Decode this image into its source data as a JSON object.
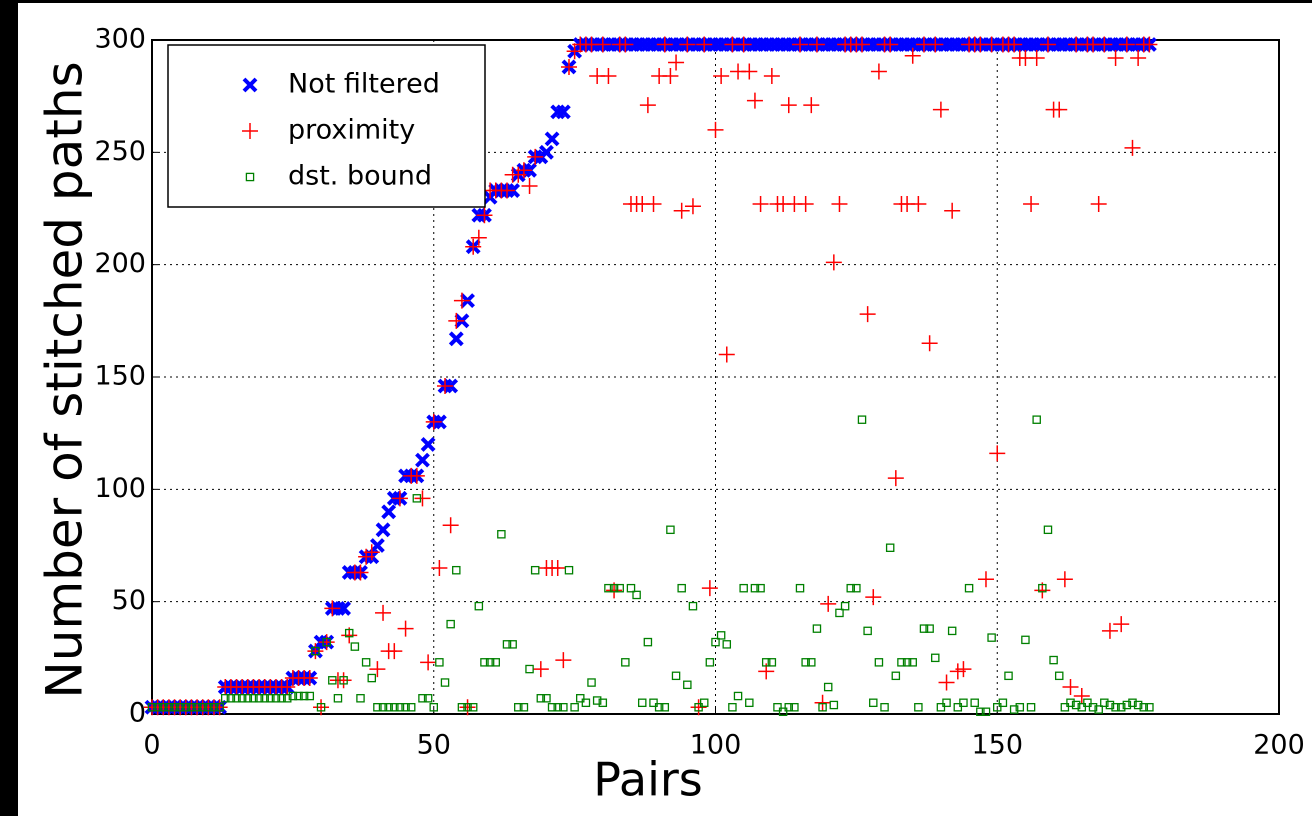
{
  "chart_data": {
    "type": "scatter",
    "x_label": "Pairs",
    "y_label": "Number of stitched paths",
    "xlim": [
      0,
      200
    ],
    "ylim": [
      0,
      300
    ],
    "xticks": [
      0,
      50,
      100,
      150,
      200
    ],
    "yticks": [
      0,
      50,
      100,
      150,
      200,
      250,
      300
    ],
    "grid": true,
    "legend": "upper left",
    "x": [
      0,
      1,
      2,
      3,
      4,
      5,
      6,
      7,
      8,
      9,
      10,
      11,
      12,
      13,
      14,
      15,
      16,
      17,
      18,
      19,
      20,
      21,
      22,
      23,
      24,
      25,
      26,
      27,
      28,
      29,
      30,
      31,
      32,
      33,
      34,
      35,
      36,
      37,
      38,
      39,
      40,
      41,
      42,
      43,
      44,
      45,
      46,
      47,
      48,
      49,
      50,
      51,
      52,
      53,
      54,
      55,
      56,
      57,
      58,
      59,
      60,
      61,
      62,
      63,
      64,
      65,
      66,
      67,
      68,
      69,
      70,
      71,
      72,
      73,
      74,
      75,
      76,
      77,
      78,
      79,
      80,
      81,
      82,
      83,
      84,
      85,
      86,
      87,
      88,
      89,
      90,
      91,
      92,
      93,
      94,
      95,
      96,
      97,
      98,
      99,
      100,
      101,
      102,
      103,
      104,
      105,
      106,
      107,
      108,
      109,
      110,
      111,
      112,
      113,
      114,
      115,
      116,
      117,
      118,
      119,
      120,
      121,
      122,
      123,
      124,
      125,
      126,
      127,
      128,
      129,
      130,
      131,
      132,
      133,
      134,
      135,
      136,
      137,
      138,
      139,
      140,
      141,
      142,
      143,
      144,
      145,
      146,
      147,
      148,
      149,
      150,
      151,
      152,
      153,
      154,
      155,
      156,
      157,
      158,
      159,
      160,
      161,
      162,
      163,
      164,
      165,
      166,
      167,
      168,
      169,
      170,
      171,
      172,
      173,
      174,
      175,
      176,
      177
    ],
    "series": [
      {
        "name": "Not filtered",
        "color": "#0000ff",
        "marker": "x",
        "values": [
          3,
          3,
          3,
          3,
          3,
          3,
          3,
          3,
          3,
          3,
          3,
          3,
          3,
          12,
          12,
          12,
          12,
          12,
          12,
          12,
          12,
          12,
          12,
          12,
          12,
          16,
          16,
          16,
          16,
          28,
          32,
          32,
          47,
          47,
          47,
          63,
          63,
          63,
          70,
          70,
          75,
          82,
          90,
          96,
          96,
          106,
          106,
          106,
          113,
          120,
          130,
          130,
          146,
          146,
          167,
          175,
          184,
          208,
          222,
          222,
          230,
          233,
          233,
          233,
          233,
          240,
          242,
          242,
          248,
          248,
          250,
          256,
          268,
          268,
          288,
          295,
          298,
          298,
          298,
          298,
          298,
          298,
          298,
          298,
          298,
          298,
          298,
          298,
          298,
          298,
          298,
          298,
          298,
          298,
          298,
          298,
          298,
          298,
          298,
          298,
          298,
          298,
          298,
          298,
          298,
          298,
          298,
          298,
          298,
          298,
          298,
          298,
          298,
          298,
          298,
          298,
          298,
          298,
          298,
          298,
          298,
          298,
          298,
          298,
          298,
          298,
          298,
          298,
          298,
          298,
          298,
          298,
          298,
          298,
          298,
          298,
          298,
          298,
          298,
          298,
          298,
          298,
          298,
          298,
          298,
          298,
          298,
          298,
          298,
          298,
          298,
          298,
          298,
          298,
          298,
          298,
          298,
          298,
          298,
          298,
          298,
          298,
          298,
          298,
          298,
          298,
          298,
          298,
          298,
          298,
          298,
          298,
          298,
          298,
          298,
          298,
          298,
          298
        ]
      },
      {
        "name": "proximity",
        "color": "#ff0000",
        "marker": "plus",
        "values": [
          3,
          3,
          3,
          3,
          3,
          3,
          3,
          3,
          3,
          3,
          3,
          3,
          3,
          12,
          12,
          12,
          12,
          12,
          12,
          12,
          12,
          12,
          12,
          12,
          12,
          16,
          16,
          16,
          16,
          28,
          3,
          32,
          47,
          15,
          15,
          35,
          63,
          63,
          70,
          72,
          20,
          45,
          28,
          28,
          96,
          38,
          106,
          106,
          96,
          23,
          130,
          65,
          146,
          84,
          175,
          184,
          3,
          208,
          212,
          222,
          233,
          233,
          233,
          233,
          240,
          240,
          242,
          235,
          248,
          20,
          65,
          65,
          65,
          24,
          288,
          295,
          298,
          298,
          298,
          284,
          298,
          284,
          55,
          298,
          298,
          227,
          227,
          227,
          271,
          227,
          284,
          298,
          284,
          290,
          224,
          298,
          226,
          3,
          298,
          56,
          260,
          284,
          160,
          298,
          286,
          298,
          286,
          273,
          227,
          19,
          284,
          227,
          227,
          271,
          227,
          298,
          227,
          271,
          298,
          5,
          49,
          201,
          227,
          298,
          298,
          298,
          298,
          178,
          52,
          286,
          298,
          298,
          105,
          227,
          227,
          293,
          227,
          298,
          165,
          298,
          269,
          14,
          224,
          19,
          20,
          298,
          298,
          298,
          60,
          298,
          116,
          298,
          298,
          298,
          292,
          292,
          227,
          292,
          55,
          298,
          269,
          269,
          60,
          12,
          298,
          8,
          298,
          298,
          227,
          298,
          37,
          292,
          40,
          298,
          252,
          292,
          298,
          298
        ]
      },
      {
        "name": "dst. bound",
        "color": "#008000",
        "marker": "square",
        "values": [
          3,
          3,
          3,
          3,
          3,
          3,
          3,
          3,
          3,
          3,
          3,
          3,
          3,
          7,
          7,
          7,
          7,
          7,
          7,
          7,
          7,
          7,
          7,
          7,
          7,
          8,
          8,
          8,
          8,
          28,
          3,
          32,
          15,
          7,
          15,
          36,
          30,
          7,
          23,
          16,
          3,
          3,
          3,
          3,
          3,
          3,
          3,
          96,
          7,
          7,
          3,
          23,
          14,
          40,
          64,
          3,
          3,
          3,
          48,
          23,
          23,
          23,
          80,
          31,
          31,
          3,
          3,
          20,
          64,
          7,
          7,
          3,
          3,
          3,
          64,
          3,
          7,
          5,
          14,
          6,
          5,
          56,
          56,
          56,
          23,
          56,
          53,
          5,
          32,
          5,
          3,
          3,
          82,
          17,
          56,
          13,
          48,
          3,
          5,
          23,
          32,
          35,
          31,
          3,
          8,
          56,
          5,
          56,
          56,
          23,
          23,
          3,
          1,
          3,
          3,
          56,
          23,
          23,
          38,
          3,
          12,
          4,
          45,
          48,
          56,
          56,
          131,
          37,
          5,
          23,
          3,
          74,
          17,
          23,
          23,
          23,
          3,
          38,
          38,
          25,
          3,
          5,
          37,
          3,
          5,
          56,
          5,
          1,
          1,
          34,
          3,
          5,
          17,
          2,
          3,
          33,
          3,
          131,
          56,
          82,
          24,
          17,
          3,
          5,
          4,
          3,
          5,
          3,
          2,
          5,
          4,
          3,
          3,
          4,
          5,
          4,
          3,
          3
        ]
      }
    ]
  }
}
